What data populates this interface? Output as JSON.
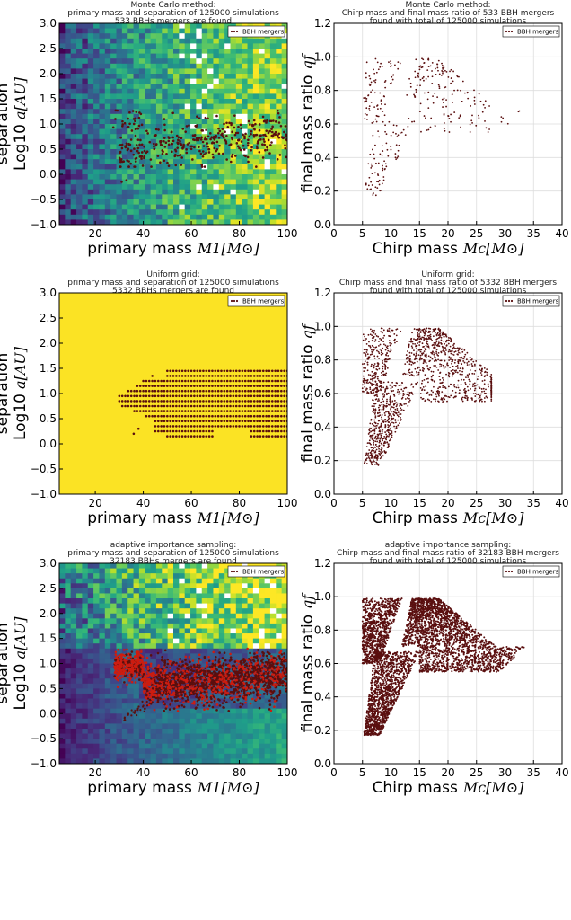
{
  "chart_data": [
    {
      "id": "mc-scatter-mass-sep",
      "type": "heatmap",
      "method": "mc",
      "title_lines": [
        "Monte Carlo method:",
        "primary mass and separation of 125000 simulations",
        "533 BBHs mergers are found"
      ],
      "xlabel": "primary mass",
      "xlabel_math": "M1[M⊙]",
      "ylabel_line1": "separation",
      "ylabel_line2": "Log10",
      "ylabel_math": "a[AU]",
      "xlim": [
        5,
        100
      ],
      "ylim": [
        -1.0,
        3.0
      ],
      "xticks": [
        20,
        40,
        60,
        80,
        100
      ],
      "yticks": [
        -1.0,
        -0.5,
        0.0,
        0.5,
        1.0,
        1.5,
        2.0,
        2.5,
        3.0
      ],
      "legend": "BBH mergers",
      "legend_position": "upper-right",
      "background": "viridis-noisy",
      "mergers_count": 533,
      "points_region": {
        "x_range": [
          27,
          100
        ],
        "y_band": [
          0.15,
          1.3
        ]
      }
    },
    {
      "id": "mc-scatter-chirp-q",
      "type": "scatter",
      "method": "mc",
      "title_lines": [
        "Monte Carlo method:",
        "Chirp mass and final mass ratio of 533 BBH mergers",
        "found with total of 125000 simulations"
      ],
      "xlabel": "Chirp mass",
      "xlabel_math": "Mc[M⊙]",
      "ylabel": "final mass ratio",
      "ylabel_math": "qf",
      "xlim": [
        0,
        40
      ],
      "ylim": [
        0.0,
        1.2
      ],
      "xticks": [
        0,
        5,
        10,
        15,
        20,
        25,
        30,
        35,
        40
      ],
      "yticks": [
        0.0,
        0.2,
        0.4,
        0.6,
        0.8,
        1.0,
        1.2
      ],
      "grid": true,
      "legend": "BBH mergers",
      "legend_position": "upper-right",
      "mergers_count": 533
    },
    {
      "id": "ug-scatter-mass-sep",
      "type": "heatmap",
      "method": "ug",
      "title_lines": [
        "Uniform grid:",
        "primary mass and separation of 125000 simulations",
        "5332 BBHs mergers are found"
      ],
      "xlabel": "primary mass",
      "xlabel_math": "M1[M⊙]",
      "ylabel_line1": "separation",
      "ylabel_line2": "Log10",
      "ylabel_math": "a[AU]",
      "xlim": [
        5,
        100
      ],
      "ylim": [
        -1.0,
        3.0
      ],
      "xticks": [
        20,
        40,
        60,
        80,
        100
      ],
      "yticks": [
        -1.0,
        -0.5,
        0.0,
        0.5,
        1.0,
        1.5,
        2.0,
        2.5,
        3.0
      ],
      "legend": "BBH mergers",
      "legend_position": "upper-right",
      "background": "uniform-yellow",
      "mergers_count": 5332
    },
    {
      "id": "ug-scatter-chirp-q",
      "type": "scatter",
      "method": "ug",
      "title_lines": [
        "Uniform grid:",
        "Chirp mass and final mass ratio of 5332 BBH mergers",
        "found with total of 125000 simulations"
      ],
      "xlabel": "Chirp mass",
      "xlabel_math": "Mc[M⊙]",
      "ylabel": "final mass ratio",
      "ylabel_math": "qf",
      "xlim": [
        0,
        40
      ],
      "ylim": [
        0.0,
        1.2
      ],
      "xticks": [
        0,
        5,
        10,
        15,
        20,
        25,
        30,
        35,
        40
      ],
      "yticks": [
        0.0,
        0.2,
        0.4,
        0.6,
        0.8,
        1.0,
        1.2
      ],
      "grid": true,
      "legend": "BBH mergers",
      "legend_position": "upper-right",
      "mergers_count": 5332
    },
    {
      "id": "ais-scatter-mass-sep",
      "type": "heatmap",
      "method": "ais",
      "title_lines": [
        "adaptive importance sampling:",
        "primary mass and separation of 125000 simulations",
        "32183 BBHs mergers are found"
      ],
      "xlabel": "primary mass",
      "xlabel_math": "M1[M⊙]",
      "ylabel_line1": "separation",
      "ylabel_line2": "Log10",
      "ylabel_math": "a[AU]",
      "xlim": [
        5,
        100
      ],
      "ylim": [
        -1.0,
        3.0
      ],
      "xticks": [
        20,
        40,
        60,
        80,
        100
      ],
      "yticks": [
        -1.0,
        -0.5,
        0.0,
        0.5,
        1.0,
        1.5,
        2.0,
        2.5,
        3.0
      ],
      "legend": "BBH mergers",
      "legend_position": "upper-right",
      "background": "viridis-adaptive",
      "mergers_count": 32183
    },
    {
      "id": "ais-scatter-chirp-q",
      "type": "scatter",
      "method": "ais",
      "title_lines": [
        "adaptive importance sampling:",
        "Chirp mass and final mass ratio of 32183 BBH mergers",
        "found with total of 125000 simulations"
      ],
      "xlabel": "Chirp mass",
      "xlabel_math": "Mc[M⊙]",
      "ylabel": "final mass ratio",
      "ylabel_math": "qf",
      "xlim": [
        0,
        40
      ],
      "ylim": [
        0.0,
        1.2
      ],
      "xticks": [
        0,
        5,
        10,
        15,
        20,
        25,
        30,
        35,
        40
      ],
      "yticks": [
        0.0,
        0.2,
        0.4,
        0.6,
        0.8,
        1.0,
        1.2
      ],
      "grid": true,
      "legend": "BBH mergers",
      "legend_position": "upper-right",
      "mergers_count": 32183
    }
  ],
  "colors": {
    "points": "#5a0f0f",
    "points_ais_left": "#cc1d10",
    "uniform_bg": "#fbe324",
    "grid": "#dddddd"
  }
}
